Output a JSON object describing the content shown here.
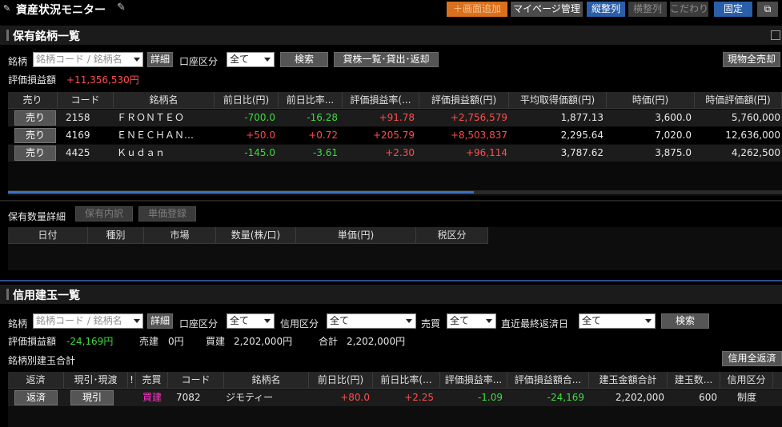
{
  "app": {
    "title": "資産状況モニター",
    "buttons": {
      "add_panel": "＋画面追加",
      "mypage": "マイページ管理",
      "vertical": "縦整列",
      "horizontal": "横整列",
      "preference": "こだわり",
      "fixed": "固定"
    }
  },
  "holdings": {
    "title": "保有銘柄一覧",
    "stock_label": "銘柄",
    "stock_placeholder": "銘柄コード / 銘柄名",
    "detail": "詳細",
    "account_label": "口座区分",
    "account_value": "全て",
    "search": "検索",
    "lending": "貸株一覧･貸出･返却",
    "sell_all": "現物全売却",
    "pl_label": "評価損益額",
    "pl_value": "+11,356,530円",
    "columns": [
      "売り",
      "コード",
      "銘柄名",
      "前日比(円)",
      "前日比率...",
      "評価損益率(...",
      "評価損益額(円)",
      "平均取得価額(円)",
      "時価(円)",
      "時価評価額(円)"
    ],
    "rows": [
      {
        "action": "売り",
        "code": "2158",
        "name": "ＦＲＯＮＴＥＯ",
        "chg": "-700.0",
        "chg_pct": "-16.28",
        "pl_pct": "+91.78",
        "pl": "+2,756,579",
        "avg": "1,877.13",
        "price": "3,600.0",
        "value": "5,760,000"
      },
      {
        "action": "売り",
        "code": "4169",
        "name": "ＥＮＥＣＨＡＮ…",
        "chg": "+50.0",
        "chg_pct": "+0.72",
        "pl_pct": "+205.79",
        "pl": "+8,503,837",
        "avg": "2,295.64",
        "price": "7,020.0",
        "value": "12,636,000"
      },
      {
        "action": "売り",
        "code": "4425",
        "name": "Ｋｕｄａｎ",
        "chg": "-145.0",
        "chg_pct": "-3.61",
        "pl_pct": "+2.30",
        "pl": "+96,114",
        "avg": "3,787.62",
        "price": "3,875.0",
        "value": "4,262,500"
      }
    ]
  },
  "quantity": {
    "label": "保有数量詳細",
    "holding_detail": "保有内訳",
    "unit_price_reg": "単価登録",
    "columns": [
      "日付",
      "種別",
      "市場",
      "数量(株/口)",
      "単価(円)",
      "税区分"
    ]
  },
  "margin": {
    "title": "信用建玉一覧",
    "stock_label": "銘柄",
    "stock_placeholder": "銘柄コード / 銘柄名",
    "detail": "詳細",
    "account_label": "口座区分",
    "account_value": "全て",
    "credit_label": "信用区分",
    "credit_value": "全て",
    "trade_label": "売買",
    "trade_value": "全て",
    "due_label": "直近最終返済日",
    "due_value": "全て",
    "search": "検索",
    "pl_label": "評価損益額",
    "pl_value": "-24,169円",
    "sell_label": "売建",
    "sell_value": "0円",
    "buy_label": "買建",
    "buy_value": "2,202,000円",
    "total_label": "合計",
    "total_value": "2,202,000円",
    "subtotal_label": "銘柄別建玉合計",
    "repay_all": "信用全返済",
    "columns": [
      "返済",
      "現引･現渡",
      "!",
      "売買",
      "コード",
      "銘柄名",
      "前日比(円)",
      "前日比率(...",
      "評価損益率...",
      "評価損益額合...",
      "建玉金額合計",
      "建玉数...",
      "信用区分"
    ],
    "rows": [
      {
        "repay": "返済",
        "delivery": "現引",
        "flag": "",
        "side": "買建",
        "code": "7082",
        "name": "ジモティー",
        "chg": "+80.0",
        "chg_pct": "+2.25",
        "pl_pct": "-1.09",
        "pl": "-24,169",
        "amount": "2,202,000",
        "qty": "600",
        "type": "制度"
      }
    ]
  },
  "colors": {
    "positive": "#ff4d4d",
    "negative": "#3fdc3f",
    "buy": "#ff33cc",
    "accent": "#2a5ea8"
  }
}
